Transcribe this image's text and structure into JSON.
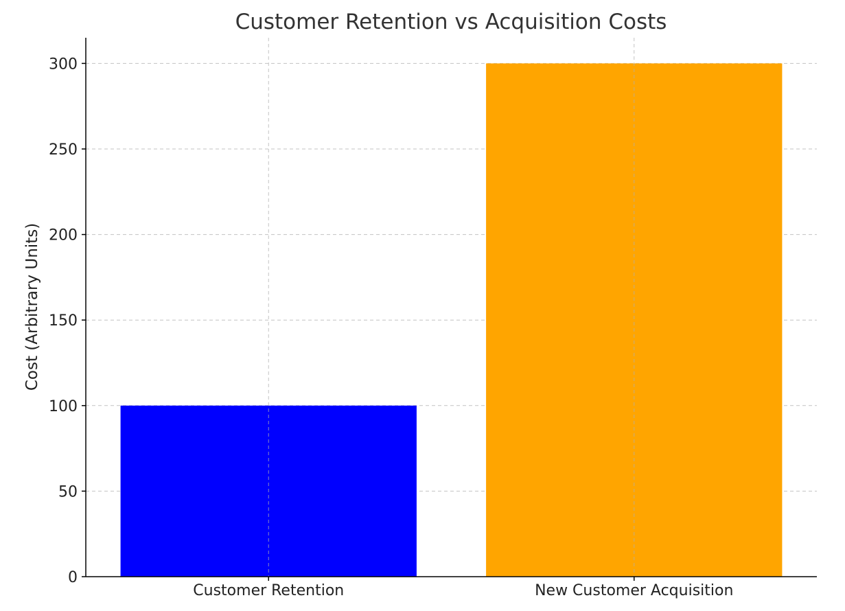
{
  "chart_data": {
    "type": "bar",
    "title": "Customer Retention vs Acquisition Costs",
    "xlabel": "",
    "ylabel": "Cost (Arbitrary Units)",
    "categories": [
      "Customer Retention",
      "New Customer Acquisition"
    ],
    "values": [
      100,
      300
    ],
    "colors": [
      "#0000ff",
      "#ffa500"
    ],
    "ylim": [
      0,
      315
    ],
    "yticks": [
      0,
      50,
      100,
      150,
      200,
      250,
      300
    ],
    "grid": true
  }
}
